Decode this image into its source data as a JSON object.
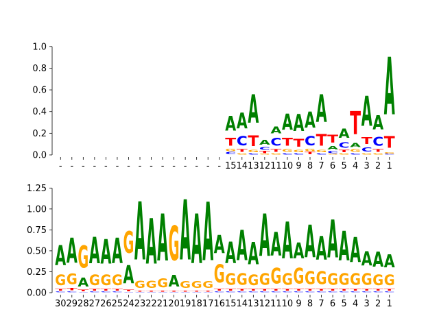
{
  "colors": {
    "A": "#008000",
    "C": "#0000ff",
    "G": "#ffa500",
    "T": "#ff0000"
  },
  "chart_data": [
    {
      "type": "sequence-logo",
      "ylim": [
        0,
        1.1
      ],
      "yticks": [
        "0.0",
        "0.2",
        "0.4",
        "0.6",
        "0.8",
        "1.0"
      ],
      "ytick_values": [
        0,
        0.2,
        0.4,
        0.6,
        0.8,
        1.0
      ],
      "xticks": [
        "-",
        "-",
        "-",
        "-",
        "-",
        "-",
        "-",
        "-",
        "-",
        "-",
        "-",
        "-",
        "-",
        "-",
        "-",
        "15",
        "14",
        "13",
        "12",
        "11",
        "10",
        "9",
        "8",
        "7",
        "6",
        "5",
        "4",
        "3",
        "2",
        "1"
      ],
      "positions": [
        [],
        [],
        [],
        [],
        [],
        [],
        [],
        [],
        [],
        [],
        [],
        [],
        [],
        [],
        [],
        [
          [
            "C",
            0.03
          ],
          [
            "G",
            0.03
          ],
          [
            "T",
            0.12
          ],
          [
            "A",
            0.22
          ]
        ],
        [
          [
            "G",
            0.02
          ],
          [
            "T",
            0.04
          ],
          [
            "C",
            0.14
          ],
          [
            "A",
            0.23
          ]
        ],
        [
          [
            "C",
            0.02
          ],
          [
            "G",
            0.03
          ],
          [
            "T",
            0.16
          ],
          [
            "A",
            0.42
          ]
        ],
        [
          [
            "G",
            0.01
          ],
          [
            "T",
            0.03
          ],
          [
            "C",
            0.04
          ],
          [
            "A",
            0.07
          ]
        ],
        [
          [
            "G",
            0.02
          ],
          [
            "T",
            0.04
          ],
          [
            "C",
            0.12
          ],
          [
            "A",
            0.1
          ]
        ],
        [
          [
            "C",
            0.02
          ],
          [
            "G",
            0.04
          ],
          [
            "T",
            0.12
          ],
          [
            "A",
            0.24
          ]
        ],
        [
          [
            "C",
            0.02
          ],
          [
            "G",
            0.03
          ],
          [
            "T",
            0.12
          ],
          [
            "A",
            0.25
          ]
        ],
        [
          [
            "T",
            0.03
          ],
          [
            "G",
            0.03
          ],
          [
            "C",
            0.14
          ],
          [
            "A",
            0.24
          ]
        ],
        [
          [
            "C",
            0.02
          ],
          [
            "G",
            0.03
          ],
          [
            "T",
            0.17
          ],
          [
            "A",
            0.41
          ]
        ],
        [
          [
            "G",
            0.01
          ],
          [
            "C",
            0.03
          ],
          [
            "A",
            0.05
          ],
          [
            "T",
            0.12
          ]
        ],
        [
          [
            "G",
            0.02
          ],
          [
            "T",
            0.03
          ],
          [
            "C",
            0.08
          ],
          [
            "A",
            0.14
          ]
        ],
        [
          [
            "C",
            0.02
          ],
          [
            "G",
            0.04
          ],
          [
            "A",
            0.06
          ],
          [
            "T",
            0.34
          ]
        ],
        [
          [
            "G",
            0.02
          ],
          [
            "C",
            0.06
          ],
          [
            "T",
            0.1
          ],
          [
            "A",
            0.44
          ]
        ],
        [
          [
            "G",
            0.02
          ],
          [
            "T",
            0.04
          ],
          [
            "C",
            0.13
          ],
          [
            "A",
            0.21
          ]
        ],
        [
          [
            "C",
            0.01
          ],
          [
            "G",
            0.02
          ],
          [
            "T",
            0.17
          ],
          [
            "A",
            0.85
          ]
        ]
      ]
    },
    {
      "type": "sequence-logo",
      "ylim": [
        0,
        1.4
      ],
      "yticks": [
        "0.00",
        "0.25",
        "0.50",
        "0.75",
        "1.00",
        "1.25"
      ],
      "ytick_values": [
        0,
        0.25,
        0.5,
        0.75,
        1.0,
        1.25
      ],
      "xticks": [
        "30",
        "29",
        "28",
        "27",
        "26",
        "25",
        "24",
        "23",
        "22",
        "21",
        "20",
        "19",
        "18",
        "17",
        "16",
        "15",
        "14",
        "13",
        "12",
        "11",
        "10",
        "9",
        "8",
        "7",
        "6",
        "5",
        "4",
        "3",
        "2",
        "1"
      ],
      "positions": [
        [
          [
            "C",
            0.02
          ],
          [
            "T",
            0.03
          ],
          [
            "G",
            0.2
          ],
          [
            "A",
            0.38
          ]
        ],
        [
          [
            "C",
            0.02
          ],
          [
            "T",
            0.04
          ],
          [
            "G",
            0.2
          ],
          [
            "A",
            0.48
          ]
        ],
        [
          [
            "C",
            0.01
          ],
          [
            "T",
            0.03
          ],
          [
            "A",
            0.17
          ],
          [
            "G",
            0.43
          ]
        ],
        [
          [
            "C",
            0.02
          ],
          [
            "T",
            0.03
          ],
          [
            "G",
            0.2
          ],
          [
            "A",
            0.5
          ]
        ],
        [
          [
            "C",
            0.02
          ],
          [
            "T",
            0.03
          ],
          [
            "G",
            0.2
          ],
          [
            "A",
            0.47
          ]
        ],
        [
          [
            "C",
            0.02
          ],
          [
            "T",
            0.03
          ],
          [
            "G",
            0.2
          ],
          [
            "A",
            0.49
          ]
        ],
        [
          [
            "C",
            0.01
          ],
          [
            "T",
            0.03
          ],
          [
            "A",
            0.35
          ],
          [
            "G",
            0.42
          ]
        ],
        [
          [
            "C",
            0.01
          ],
          [
            "T",
            0.02
          ],
          [
            "G",
            0.14
          ],
          [
            "A",
            1.11
          ]
        ],
        [
          [
            "C",
            0.01
          ],
          [
            "T",
            0.02
          ],
          [
            "G",
            0.14
          ],
          [
            "A",
            0.87
          ]
        ],
        [
          [
            "C",
            0.01
          ],
          [
            "T",
            0.02
          ],
          [
            "G",
            0.17
          ],
          [
            "A",
            0.9
          ]
        ],
        [
          [
            "C",
            0.01
          ],
          [
            "T",
            0.02
          ],
          [
            "A",
            0.22
          ],
          [
            "G",
            0.67
          ]
        ],
        [
          [
            "C",
            0.01
          ],
          [
            "T",
            0.02
          ],
          [
            "G",
            0.13
          ],
          [
            "A",
            1.15
          ]
        ],
        [
          [
            "C",
            0.01
          ],
          [
            "T",
            0.02
          ],
          [
            "G",
            0.13
          ],
          [
            "A",
            0.95
          ]
        ],
        [
          [
            "C",
            0.01
          ],
          [
            "T",
            0.02
          ],
          [
            "G",
            0.13
          ],
          [
            "A",
            1.12
          ]
        ],
        [
          [
            "C",
            0.02
          ],
          [
            "T",
            0.03
          ],
          [
            "G",
            0.35
          ],
          [
            "A",
            0.35
          ]
        ],
        [
          [
            "C",
            0.02
          ],
          [
            "T",
            0.03
          ],
          [
            "G",
            0.22
          ],
          [
            "A",
            0.41
          ]
        ],
        [
          [
            "C",
            0.02
          ],
          [
            "T",
            0.03
          ],
          [
            "G",
            0.22
          ],
          [
            "A",
            0.58
          ]
        ],
        [
          [
            "C",
            0.02
          ],
          [
            "T",
            0.03
          ],
          [
            "G",
            0.2
          ],
          [
            "A",
            0.43
          ]
        ],
        [
          [
            "C",
            0.02
          ],
          [
            "T",
            0.03
          ],
          [
            "G",
            0.22
          ],
          [
            "A",
            0.81
          ]
        ],
        [
          [
            "C",
            0.02
          ],
          [
            "T",
            0.03
          ],
          [
            "G",
            0.3
          ],
          [
            "A",
            0.45
          ]
        ],
        [
          [
            "C",
            0.02
          ],
          [
            "T",
            0.03
          ],
          [
            "G",
            0.22
          ],
          [
            "A",
            0.7
          ]
        ],
        [
          [
            "C",
            0.02
          ],
          [
            "T",
            0.03
          ],
          [
            "G",
            0.3
          ],
          [
            "A",
            0.3
          ]
        ],
        [
          [
            "C",
            0.02
          ],
          [
            "T",
            0.03
          ],
          [
            "G",
            0.25
          ],
          [
            "A",
            0.62
          ]
        ],
        [
          [
            "C",
            0.02
          ],
          [
            "T",
            0.03
          ],
          [
            "G",
            0.25
          ],
          [
            "A",
            0.45
          ]
        ],
        [
          [
            "C",
            0.02
          ],
          [
            "T",
            0.03
          ],
          [
            "G",
            0.22
          ],
          [
            "A",
            0.73
          ]
        ],
        [
          [
            "C",
            0.02
          ],
          [
            "T",
            0.03
          ],
          [
            "G",
            0.22
          ],
          [
            "A",
            0.56
          ]
        ],
        [
          [
            "C",
            0.02
          ],
          [
            "T",
            0.03
          ],
          [
            "G",
            0.22
          ],
          [
            "A",
            0.48
          ]
        ],
        [
          [
            "C",
            0.02
          ],
          [
            "T",
            0.03
          ],
          [
            "G",
            0.22
          ],
          [
            "A",
            0.27
          ]
        ],
        [
          [
            "C",
            0.02
          ],
          [
            "T",
            0.03
          ],
          [
            "G",
            0.2
          ],
          [
            "A",
            0.29
          ]
        ],
        [
          [
            "C",
            0.02
          ],
          [
            "T",
            0.03
          ],
          [
            "G",
            0.2
          ],
          [
            "A",
            0.25
          ]
        ]
      ]
    }
  ]
}
